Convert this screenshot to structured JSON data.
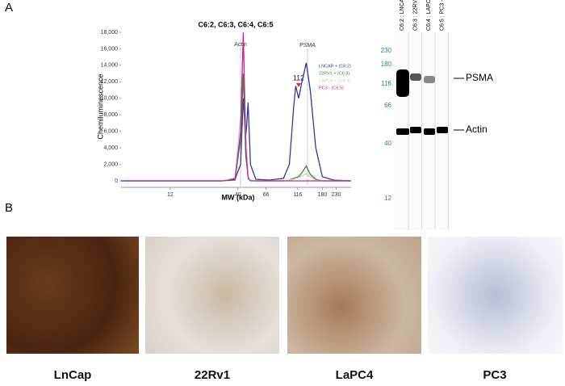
{
  "panel_a_label": "A",
  "panel_b_label": "B",
  "chart_data": {
    "type": "line",
    "title": "C6:2, C6:3, C6:4, C6:5",
    "x_label": "MW (kDa)",
    "y_label": "Chemiluminescence",
    "x_scale": "log",
    "x": [
      5,
      10,
      20,
      30,
      38,
      42,
      44,
      46,
      48,
      50,
      55,
      70,
      90,
      100,
      108,
      112,
      118,
      125,
      135,
      145,
      160,
      180,
      220,
      300
    ],
    "series": [
      {
        "name": "LNCAP + (C6:2)",
        "color": "#2b3c9e",
        "values": [
          0,
          0,
          0,
          0,
          200,
          2000,
          10000,
          5000,
          9500,
          2000,
          200,
          100,
          300,
          2000,
          9000,
          11500,
          10000,
          12000,
          14300,
          11000,
          4000,
          500,
          100,
          0
        ]
      },
      {
        "name": "22RV1 + (C6:3)",
        "color": "#2e8b2e",
        "values": [
          0,
          0,
          0,
          0,
          300,
          5000,
          13000,
          3000,
          500,
          100,
          0,
          0,
          0,
          100,
          300,
          400,
          500,
          1000,
          1800,
          800,
          200,
          0,
          0,
          0
        ]
      },
      {
        "name": "LAPC4 + (C6:4)",
        "color": "#b8d8b0",
        "values": [
          0,
          0,
          0,
          0,
          400,
          8000,
          17000,
          6000,
          600,
          100,
          0,
          0,
          0,
          100,
          200,
          300,
          400,
          600,
          900,
          500,
          100,
          0,
          0,
          0
        ]
      },
      {
        "name": "PC3 - (C6:5)",
        "color": "#d0209a",
        "values": [
          0,
          0,
          0,
          0,
          100,
          6000,
          18000,
          4000,
          300,
          0,
          0,
          0,
          0,
          0,
          0,
          0,
          0,
          0,
          0,
          0,
          0,
          0,
          0,
          0
        ]
      }
    ],
    "xlim": [
      5,
      300
    ],
    "ylim": [
      0,
      18000
    ],
    "xticks": [
      12,
      40,
      66,
      116,
      180,
      230
    ],
    "yticks": [
      0,
      {
        "value": 2000,
        "label": "2,000"
      },
      {
        "value": 4000,
        "label": "4,000"
      },
      {
        "value": 6000,
        "label": "6,000"
      },
      {
        "value": 8000,
        "label": "8,000"
      },
      {
        "value": 10000,
        "label": "10,000"
      },
      {
        "value": 12000,
        "label": "12,000"
      },
      {
        "value": 14000,
        "label": "14,000"
      },
      {
        "value": 16000,
        "label": "16,000"
      },
      {
        "value": 18000,
        "label": "18,000"
      }
    ],
    "annotations": [
      "Actin",
      "PSMA",
      "112"
    ]
  },
  "gel": {
    "lanes": [
      "C6:2 : LNCAP +",
      "C6:3 : 22RV1 +",
      "C6:4 : LAPC4 +",
      "C6:5 : PC3 -"
    ],
    "mw_markers": [
      230,
      180,
      116,
      66,
      40,
      12
    ],
    "bands": [
      "PSMA",
      "Actin"
    ]
  },
  "histology": {
    "samples": [
      "LnCap",
      "22Rv1",
      "LaPC4",
      "PC3"
    ]
  }
}
